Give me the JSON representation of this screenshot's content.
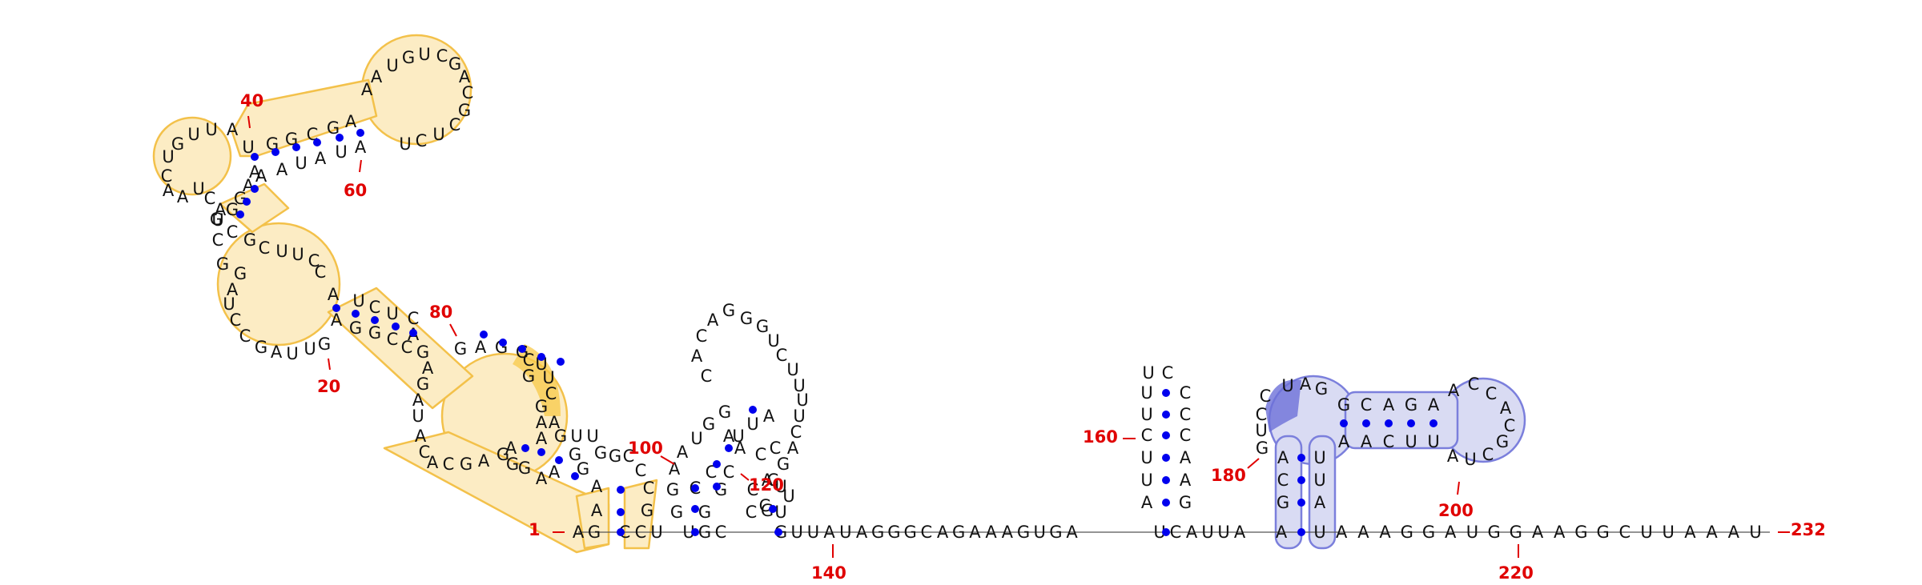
{
  "diagram": {
    "type": "rna-secondary-structure",
    "colors": {
      "nucleotide": "#111111",
      "pair": "#0000ee",
      "number": "#e00000",
      "domain_a_fill": "#fcecc4",
      "domain_a_stroke": "#f3c14a",
      "domain_b_fill": "#d9dbf3",
      "domain_b_stroke": "#7b7fdc"
    },
    "nucleotides": {
      "n001": "A",
      "n002": "G",
      "n003": "C",
      "n004": "C",
      "n005": "U",
      "n006": "G",
      "n007": "A",
      "n008": "C",
      "n009": "G",
      "n010": "U",
      "n011": "U",
      "n012": "A",
      "n013": "U",
      "n014": "A",
      "n015": "G",
      "n016": "G",
      "n017": "C",
      "n018": "A",
      "n019": "G",
      "n020": "A",
      "n021": "A",
      "n022": "A",
      "h01": "A",
      "h02": "G",
      "h03": "C",
      "h04": "C",
      "h05": "C",
      "h06": "G",
      "h07": "G",
      "h08": "U",
      "h09": "U",
      "h10": "G",
      "h11": "A",
      "h12": "A",
      "h13": "G",
      "h14": "G",
      "h15": "C",
      "h16": "C",
      "h17": "C",
      "h18": "U",
      "h19": "U",
      "h20": "A",
      "h21": "C",
      "h22": "C",
      "h23": "A",
      "h24": "C",
      "h25": "G",
      "h26": "C",
      "h27": "U",
      "h28": "A",
      "h29": "C",
      "h30": "A",
      "h31": "A",
      "s01": "A",
      "s02": "U",
      "s03": "C",
      "s04": "U",
      "s05": "C",
      "s06": "A",
      "s07": "G",
      "s08": "A",
      "s09": "G",
      "s10": "A",
      "s11": "G",
      "s12": "U",
      "s13": "U",
      "s14": "A",
      "s15": "G",
      "s16": "C",
      "s17": "C",
      "s18": "U",
      "s19": "A",
      "s20": "G",
      "s21": "G",
      "s22": "C",
      "s23": "U",
      "s24": "G",
      "s25": "G",
      "s26": "A",
      "s27": "A",
      "s28": "A",
      "s29": "C",
      "s30": "U",
      "s31": "A",
      "s32": "A",
      "s33": "C",
      "s34": "U",
      "l01": "C",
      "l02": "C",
      "l03": "U",
      "l04": "G",
      "l05": "G",
      "l06": "C",
      "u01": "U",
      "u02": "G",
      "u03": "C",
      "u04": "C",
      "u05": "A",
      "u06": "C",
      "u07": "A",
      "u08": "G",
      "m01": "A",
      "m02": "A",
      "m03": "G",
      "m04": "G",
      "m05": "A",
      "m06": "A",
      "m07": "G",
      "m08": "G",
      "m09": "C",
      "m10": "C",
      "m11": "C",
      "m12": "C",
      "d01": "G",
      "d02": "A",
      "d03": "A",
      "d04": "U",
      "d05": "G",
      "d06": "G",
      "e01": "A",
      "e02": "A",
      "e03": "G",
      "e04": "G",
      "p01": "G",
      "p02": "C",
      "p03": "C",
      "p04": "U",
      "q01": "U",
      "q02": "G",
      "q03": "G",
      "q04": "C",
      "q05": "G",
      "q06": "A",
      "q07": "A",
      "q08": "A",
      "q09": "U",
      "q10": "A",
      "q11": "U",
      "q12": "A",
      "q13": "A",
      "q14": "A",
      "q15": "U",
      "q16": "G",
      "q17": "U",
      "q18": "C",
      "q19": "G",
      "q20": "A",
      "q21": "C",
      "q22": "G",
      "q23": "C",
      "q24": "U",
      "q25": "C",
      "q26": "U",
      "q27": "G",
      "q28": "C",
      "q29": "G",
      "q30": "C",
      "q31": "U",
      "q32": "U",
      "q33": "C",
      "q34": "C",
      "t01": "G",
      "t02": "U",
      "t03": "U",
      "t04": "A",
      "t05": "U",
      "t06": "A",
      "t07": "G",
      "t08": "G",
      "t09": "G",
      "t10": "C",
      "t11": "A",
      "t12": "G",
      "t13": "A",
      "t14": "A",
      "t15": "A",
      "t16": "G",
      "t17": "U",
      "t18": "G",
      "t19": "A",
      "v01": "G",
      "v02": "G",
      "v03": "U",
      "v04": "C",
      "v05": "U",
      "v06": "U",
      "v07": "U",
      "v08": "U",
      "v09": "C",
      "v10": "A",
      "v11": "G",
      "v12": "A",
      "v13": "C",
      "v14": "C",
      "v15": "U",
      "w01": "C",
      "w02": "A",
      "w03": "U",
      "w04": "U",
      "w05": "A",
      "x01": "G",
      "x02": "A",
      "x03": "G",
      "x04": "G",
      "x05": "U",
      "x06": "U",
      "x07": "C",
      "x08": "C",
      "x09": "A",
      "x10": "C",
      "x11": "G",
      "x12": "A",
      "x13": "G",
      "x14": "A",
      "x15": "A",
      "x16": "U",
      "x17": "A",
      "x18": "A",
      "x19": "C",
      "x20": "C",
      "x21": "U",
      "x22": "U",
      "x23": "C",
      "x24": "C",
      "x25": "G",
      "x26": "U",
      "x27": "C",
      "x28": "U",
      "x29": "U",
      "x30": "C",
      "x31": "U",
      "y01": "U",
      "y02": "A",
      "y03": "A",
      "y04": "A",
      "y05": "G",
      "y06": "G",
      "y07": "A",
      "y08": "U",
      "y09": "G",
      "y10": "G",
      "y11": "A",
      "y12": "A",
      "y13": "G",
      "y14": "G",
      "y15": "C",
      "y16": "U",
      "y17": "U",
      "y18": "A",
      "y19": "A",
      "y20": "A",
      "y21": "U"
    },
    "numbers": {
      "n1": "1",
      "n20": "20",
      "n40": "40",
      "n60": "60",
      "n80": "80",
      "n100": "100",
      "n120": "120",
      "n140": "140",
      "n160": "160",
      "n180": "180",
      "n200": "200",
      "n220": "220",
      "n232": "232"
    }
  }
}
